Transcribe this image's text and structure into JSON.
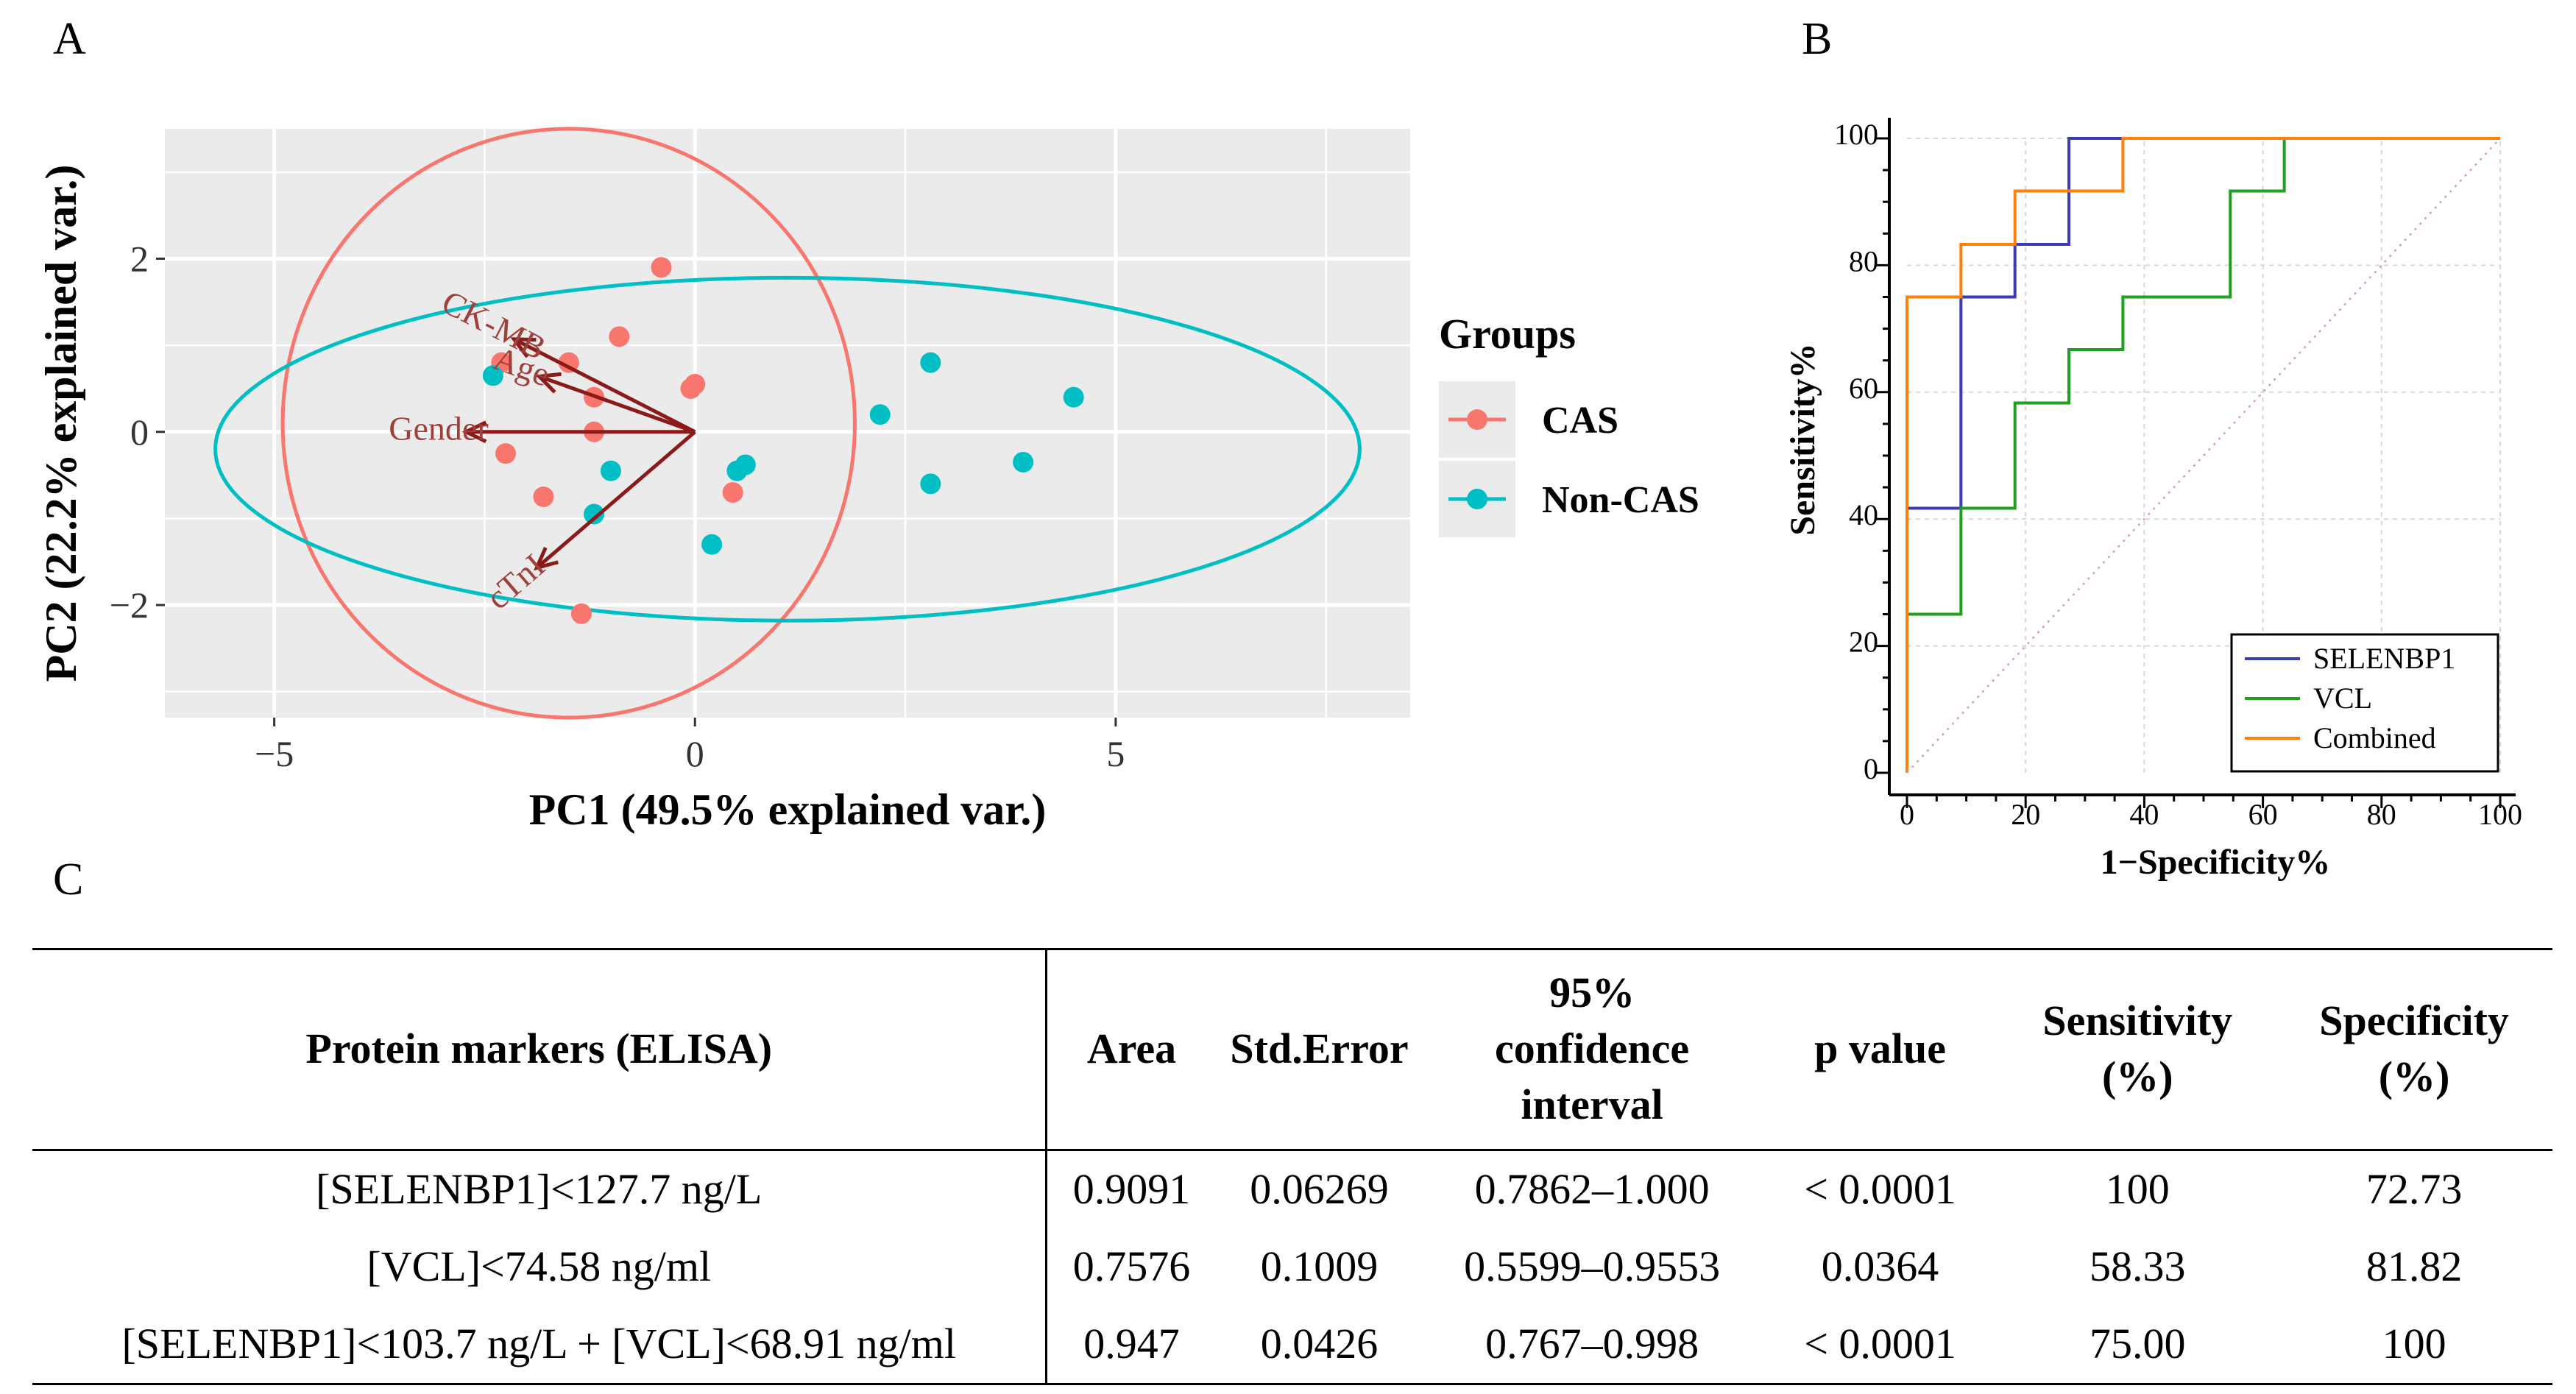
{
  "panels": {
    "a": "A",
    "b": "B",
    "c": "C"
  },
  "pca": {
    "xlabel": "PC1 (49.5% explained var.)",
    "ylabel": "PC2 (22.2% explained var.)",
    "xticks": [
      -5,
      0,
      5
    ],
    "xtick_labels": [
      "−5",
      "0",
      "5"
    ],
    "yticks": [
      -2,
      0,
      2
    ],
    "ytick_labels": [
      "−2",
      "0",
      "2"
    ],
    "legend_title": "Groups",
    "groups": [
      {
        "name": "CAS",
        "color": "#F8766D",
        "points": [
          [
            -0.4,
            1.9
          ],
          [
            -0.9,
            1.1
          ],
          [
            -2.3,
            0.8
          ],
          [
            -1.5,
            0.8
          ],
          [
            -1.2,
            0.4
          ],
          [
            0.0,
            0.55
          ],
          [
            -0.05,
            0.5
          ],
          [
            -1.2,
            0.0
          ],
          [
            -2.25,
            -0.25
          ],
          [
            -1.8,
            -0.75
          ],
          [
            0.45,
            -0.7
          ],
          [
            -1.35,
            -2.1
          ]
        ],
        "ellipse": {
          "center": [
            -1.5,
            0.1
          ],
          "rx": 3.4,
          "ry": 3.4,
          "angle": 0
        }
      },
      {
        "name": "Non-CAS",
        "color": "#00BFC4",
        "points": [
          [
            -2.4,
            0.65
          ],
          [
            2.8,
            0.8
          ],
          [
            4.5,
            0.4
          ],
          [
            2.2,
            0.2
          ],
          [
            3.9,
            -0.35
          ],
          [
            2.8,
            -0.6
          ],
          [
            -1.0,
            -0.45
          ],
          [
            0.5,
            -0.45
          ],
          [
            0.6,
            -0.38
          ],
          [
            -1.2,
            -0.95
          ],
          [
            0.2,
            -1.3
          ]
        ],
        "ellipse": {
          "center": [
            1.1,
            -0.2
          ],
          "rx": 6.8,
          "ry": 1.98,
          "angle": 0
        }
      }
    ],
    "loadings": [
      {
        "name": "CK-MB",
        "dx": -2.15,
        "dy": 1.07
      },
      {
        "name": "Age",
        "dx": -1.85,
        "dy": 0.64
      },
      {
        "name": "Gender",
        "dx": -2.72,
        "dy": 0.0
      },
      {
        "name": "cTnI",
        "dx": -1.88,
        "dy": -1.57
      }
    ],
    "colors": {
      "panel_bg": "#EBEBEB",
      "arrow": "#8B1A1A"
    }
  },
  "chart_data": [
    {
      "type": "scatter",
      "title": "",
      "xlabel": "PC1 (49.5% explained var.)",
      "ylabel": "PC2 (22.2% explained var.)",
      "xlim": [
        -6.3,
        8.5
      ],
      "ylim": [
        -3.3,
        3.5
      ],
      "series": [
        {
          "name": "CAS",
          "points": [
            [
              -0.4,
              1.9
            ],
            [
              -0.9,
              1.1
            ],
            [
              -2.3,
              0.8
            ],
            [
              -1.5,
              0.8
            ],
            [
              -1.2,
              0.4
            ],
            [
              0.0,
              0.55
            ],
            [
              -0.05,
              0.5
            ],
            [
              -1.2,
              0.0
            ],
            [
              -2.25,
              -0.25
            ],
            [
              -1.8,
              -0.75
            ],
            [
              0.45,
              -0.7
            ],
            [
              -1.35,
              -2.1
            ]
          ]
        },
        {
          "name": "Non-CAS",
          "points": [
            [
              -2.4,
              0.65
            ],
            [
              2.8,
              0.8
            ],
            [
              4.5,
              0.4
            ],
            [
              2.2,
              0.2
            ],
            [
              3.9,
              -0.35
            ],
            [
              2.8,
              -0.6
            ],
            [
              -1.0,
              -0.45
            ],
            [
              0.5,
              -0.45
            ],
            [
              0.6,
              -0.38
            ],
            [
              -1.2,
              -0.95
            ],
            [
              0.2,
              -1.3
            ]
          ]
        }
      ],
      "legend": "right"
    },
    {
      "type": "line",
      "title": "",
      "xlabel": "1−Specificity%",
      "ylabel": "Sensitivity%",
      "xlim": [
        0,
        100
      ],
      "ylim": [
        0,
        100
      ],
      "xticks": [
        0,
        20,
        40,
        60,
        80,
        100
      ],
      "yticks": [
        0,
        20,
        40,
        60,
        80,
        100
      ],
      "series": [
        {
          "name": "SELENBP1",
          "color": "#3B3BB3",
          "points": [
            [
              0,
              0
            ],
            [
              0,
              41.7
            ],
            [
              9.1,
              41.7
            ],
            [
              9.1,
              75
            ],
            [
              18.2,
              75
            ],
            [
              18.2,
              83.3
            ],
            [
              27.3,
              83.3
            ],
            [
              27.3,
              100
            ],
            [
              100,
              100
            ]
          ]
        },
        {
          "name": "VCL",
          "color": "#1FA01F",
          "points": [
            [
              0,
              0
            ],
            [
              0,
              25
            ],
            [
              9.1,
              25
            ],
            [
              9.1,
              41.7
            ],
            [
              18.2,
              41.7
            ],
            [
              18.2,
              58.3
            ],
            [
              27.3,
              58.3
            ],
            [
              27.3,
              66.7
            ],
            [
              36.4,
              66.7
            ],
            [
              36.4,
              75
            ],
            [
              54.5,
              75
            ],
            [
              54.5,
              91.7
            ],
            [
              63.6,
              91.7
            ],
            [
              63.6,
              100
            ],
            [
              100,
              100
            ]
          ]
        },
        {
          "name": "Combined",
          "color": "#FF7F0E",
          "points": [
            [
              0,
              0
            ],
            [
              0,
              75
            ],
            [
              9.1,
              75
            ],
            [
              9.1,
              83.3
            ],
            [
              18.2,
              83.3
            ],
            [
              18.2,
              91.7
            ],
            [
              36.4,
              91.7
            ],
            [
              36.4,
              100
            ],
            [
              100,
              100
            ]
          ]
        },
        {
          "name": "reference",
          "color": "#D9A0A0",
          "points": [
            [
              0,
              0
            ],
            [
              100,
              100
            ]
          ]
        }
      ],
      "legend": "bottom-right"
    },
    {
      "type": "table",
      "headers": [
        "Protein markers (ELISA)",
        "Area",
        "Std.Error",
        "95% confidence interval",
        "p value",
        "Sensitivity (%)",
        "Specificity (%)"
      ],
      "rows": [
        [
          "[SELENBP1]<127.7 ng/L",
          "0.9091",
          "0.06269",
          "0.7862–1.000",
          "< 0.0001",
          "100",
          "72.73"
        ],
        [
          "[VCL]<74.58 ng/ml",
          "0.7576",
          "0.1009",
          "0.5599–0.9553",
          "0.0364",
          "58.33",
          "81.82"
        ],
        [
          "[SELENBP1]<103.7 ng/L + [VCL]<68.91 ng/ml",
          "0.947",
          "0.0426",
          "0.767–0.998",
          "< 0.0001",
          "75.00",
          "100"
        ]
      ]
    }
  ],
  "roc": {
    "xlabel": "1−Specificity%",
    "ylabel": "Sensitivity%",
    "ticks": [
      0,
      20,
      40,
      60,
      80,
      100
    ]
  },
  "table": {
    "headers": {
      "marker": "Protein markers (ELISA)",
      "area": "Area",
      "stderr": "Std.Error",
      "ci_1": "95%",
      "ci_2": "confidence",
      "ci_3": "interval",
      "p": "p value",
      "sens_1": "Sensitivity",
      "sens_2": "(%)",
      "spec_1": "Specificity",
      "spec_2": "(%)"
    }
  }
}
